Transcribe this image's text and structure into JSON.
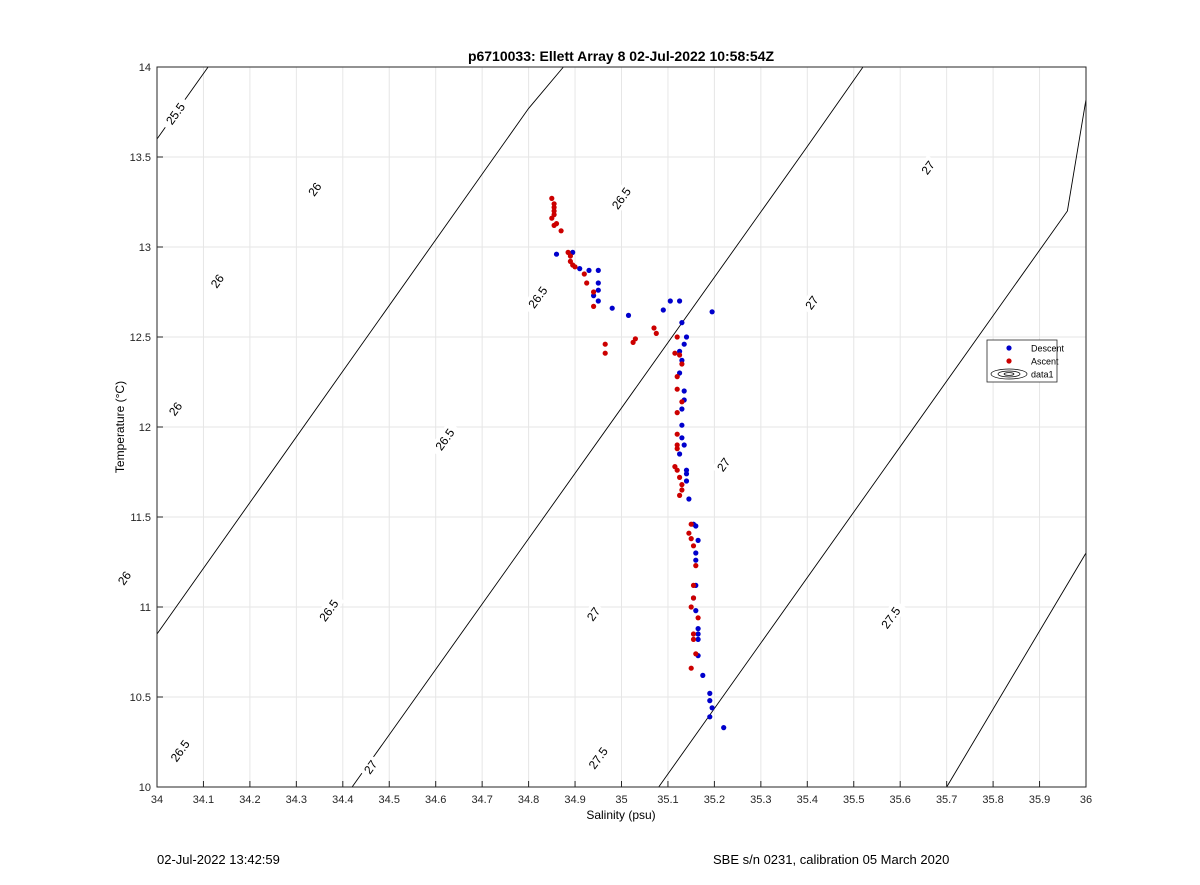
{
  "chart_data": {
    "type": "scatter",
    "title": "p6710033: Ellett Array 8 02-Jul-2022 10:58:54Z",
    "xlabel": "Salinity (psu)",
    "ylabel": "Temperature (°C)",
    "xlim": [
      34,
      36
    ],
    "ylim": [
      10,
      14
    ],
    "xticks": [
      34,
      34.1,
      34.2,
      34.3,
      34.4,
      34.5,
      34.6,
      34.7,
      34.8,
      34.9,
      35,
      35.1,
      35.2,
      35.3,
      35.4,
      35.5,
      35.6,
      35.7,
      35.8,
      35.9,
      36
    ],
    "xticklabels": [
      "34",
      "34.1",
      "34.2",
      "34.3",
      "34.4",
      "34.5",
      "34.6",
      "34.7",
      "34.8",
      "34.9",
      "35",
      "35.1",
      "35.2",
      "35.3",
      "35.4",
      "35.5",
      "35.6",
      "35.7",
      "35.8",
      "35.9",
      "36"
    ],
    "yticks": [
      10,
      10.5,
      11,
      11.5,
      12,
      12.5,
      13,
      13.5,
      14
    ],
    "yticklabels": [
      "10",
      "10.5",
      "11",
      "11.5",
      "12",
      "12.5",
      "13",
      "13.5",
      "14"
    ],
    "grid": true,
    "legend_position": "right",
    "legend": [
      "Descent",
      "Ascent",
      "data1"
    ],
    "series": [
      {
        "name": "Descent",
        "color": "#0000cc",
        "points": [
          [
            34.86,
            12.96
          ],
          [
            34.895,
            12.97
          ],
          [
            34.91,
            12.88
          ],
          [
            34.93,
            12.87
          ],
          [
            34.95,
            12.87
          ],
          [
            34.95,
            12.8
          ],
          [
            34.95,
            12.76
          ],
          [
            34.94,
            12.73
          ],
          [
            34.95,
            12.7
          ],
          [
            34.98,
            12.66
          ],
          [
            35.015,
            12.62
          ],
          [
            35.09,
            12.65
          ],
          [
            35.105,
            12.7
          ],
          [
            35.125,
            12.7
          ],
          [
            35.195,
            12.64
          ],
          [
            35.13,
            12.58
          ],
          [
            35.14,
            12.5
          ],
          [
            35.135,
            12.46
          ],
          [
            35.125,
            12.42
          ],
          [
            35.13,
            12.37
          ],
          [
            35.125,
            12.3
          ],
          [
            35.135,
            12.2
          ],
          [
            35.135,
            12.15
          ],
          [
            35.13,
            12.1
          ],
          [
            35.13,
            12.01
          ],
          [
            35.13,
            11.94
          ],
          [
            35.135,
            11.9
          ],
          [
            35.125,
            11.85
          ],
          [
            35.14,
            11.76
          ],
          [
            35.14,
            11.74
          ],
          [
            35.14,
            11.7
          ],
          [
            35.145,
            11.6
          ],
          [
            35.155,
            11.46
          ],
          [
            35.16,
            11.45
          ],
          [
            35.165,
            11.37
          ],
          [
            35.16,
            11.3
          ],
          [
            35.16,
            11.26
          ],
          [
            35.16,
            11.12
          ],
          [
            35.155,
            11.05
          ],
          [
            35.16,
            10.98
          ],
          [
            35.165,
            10.88
          ],
          [
            35.165,
            10.85
          ],
          [
            35.165,
            10.82
          ],
          [
            35.165,
            10.73
          ],
          [
            35.175,
            10.62
          ],
          [
            35.19,
            10.52
          ],
          [
            35.19,
            10.48
          ],
          [
            35.195,
            10.44
          ],
          [
            35.19,
            10.39
          ],
          [
            35.22,
            10.33
          ]
        ]
      },
      {
        "name": "Ascent",
        "color": "#cc0000",
        "points": [
          [
            34.85,
            13.27
          ],
          [
            34.855,
            13.24
          ],
          [
            34.855,
            13.22
          ],
          [
            34.855,
            13.2
          ],
          [
            34.855,
            13.18
          ],
          [
            34.85,
            13.16
          ],
          [
            34.86,
            13.13
          ],
          [
            34.855,
            13.12
          ],
          [
            34.87,
            13.09
          ],
          [
            34.885,
            12.97
          ],
          [
            34.89,
            12.95
          ],
          [
            34.89,
            12.92
          ],
          [
            34.895,
            12.9
          ],
          [
            34.9,
            12.89
          ],
          [
            34.92,
            12.85
          ],
          [
            34.925,
            12.8
          ],
          [
            34.94,
            12.75
          ],
          [
            34.94,
            12.67
          ],
          [
            34.965,
            12.46
          ],
          [
            34.965,
            12.41
          ],
          [
            35.025,
            12.47
          ],
          [
            35.03,
            12.49
          ],
          [
            35.07,
            12.55
          ],
          [
            35.075,
            12.52
          ],
          [
            35.12,
            12.5
          ],
          [
            35.115,
            12.41
          ],
          [
            35.125,
            12.4
          ],
          [
            35.13,
            12.35
          ],
          [
            35.12,
            12.28
          ],
          [
            35.12,
            12.21
          ],
          [
            35.13,
            12.14
          ],
          [
            35.12,
            12.08
          ],
          [
            35.12,
            11.96
          ],
          [
            35.12,
            11.9
          ],
          [
            35.12,
            11.88
          ],
          [
            35.115,
            11.78
          ],
          [
            35.12,
            11.76
          ],
          [
            35.125,
            11.72
          ],
          [
            35.13,
            11.68
          ],
          [
            35.13,
            11.65
          ],
          [
            35.125,
            11.62
          ],
          [
            35.15,
            11.46
          ],
          [
            35.145,
            11.41
          ],
          [
            35.15,
            11.38
          ],
          [
            35.155,
            11.34
          ],
          [
            35.16,
            11.23
          ],
          [
            35.155,
            11.12
          ],
          [
            35.155,
            11.05
          ],
          [
            35.15,
            11.0
          ],
          [
            35.165,
            10.94
          ],
          [
            35.155,
            10.85
          ],
          [
            35.155,
            10.82
          ],
          [
            35.16,
            10.74
          ],
          [
            35.15,
            10.66
          ]
        ]
      }
    ],
    "contours": {
      "name": "data1",
      "type": "sigma-theta isopycnals",
      "levels": [
        {
          "level": 25.5,
          "label": "25.5",
          "points": [
            [
              34.0,
              13.6
            ],
            [
              34.11,
              14.0
            ]
          ]
        },
        {
          "level": 26,
          "label": "26",
          "points": [
            [
              34.0,
              10.85
            ],
            [
              34.8,
              13.77
            ],
            [
              34.875,
              14.0
            ]
          ]
        },
        {
          "level": 26.5,
          "label": "26.5",
          "points": [
            [
              34.42,
              10.0
            ],
            [
              35.395,
              13.54
            ],
            [
              35.52,
              14.0
            ]
          ]
        },
        {
          "level": 27,
          "label": "27",
          "points": [
            [
              35.08,
              10.0
            ],
            [
              35.96,
              13.2
            ],
            [
              36.0,
              13.82
            ]
          ]
        },
        {
          "level": 27.5,
          "label": "27.5",
          "points": [
            [
              35.7,
              10.0
            ],
            [
              36.0,
              11.3
            ]
          ]
        }
      ],
      "labels": [
        {
          "text": "25.5",
          "at": [
            34.04,
            13.74
          ]
        },
        {
          "text": "26",
          "at": [
            34.34,
            13.32
          ]
        },
        {
          "text": "26",
          "at": [
            34.13,
            12.81
          ]
        },
        {
          "text": "26",
          "at": [
            34.04,
            12.1
          ]
        },
        {
          "text": "26",
          "at": [
            33.93,
            11.16
          ]
        },
        {
          "text": "26.5",
          "at": [
            35.0,
            13.27
          ]
        },
        {
          "text": "26.5",
          "at": [
            34.82,
            12.72
          ]
        },
        {
          "text": "26.5",
          "at": [
            34.62,
            11.93
          ]
        },
        {
          "text": "26.5",
          "at": [
            34.37,
            10.98
          ]
        },
        {
          "text": "26.5",
          "at": [
            34.05,
            10.2
          ]
        },
        {
          "text": "27",
          "at": [
            35.66,
            13.44
          ]
        },
        {
          "text": "27",
          "at": [
            35.41,
            12.69
          ]
        },
        {
          "text": "27",
          "at": [
            35.22,
            11.79
          ]
        },
        {
          "text": "27",
          "at": [
            34.94,
            10.96
          ]
        },
        {
          "text": "27",
          "at": [
            34.46,
            10.11
          ]
        },
        {
          "text": "27.5",
          "at": [
            35.58,
            10.94
          ]
        },
        {
          "text": "27.5",
          "at": [
            34.95,
            10.16
          ]
        }
      ]
    }
  },
  "footer": {
    "left": "02-Jul-2022 13:42:59",
    "right": "SBE s/n 0231, calibration 05 March 2020"
  }
}
